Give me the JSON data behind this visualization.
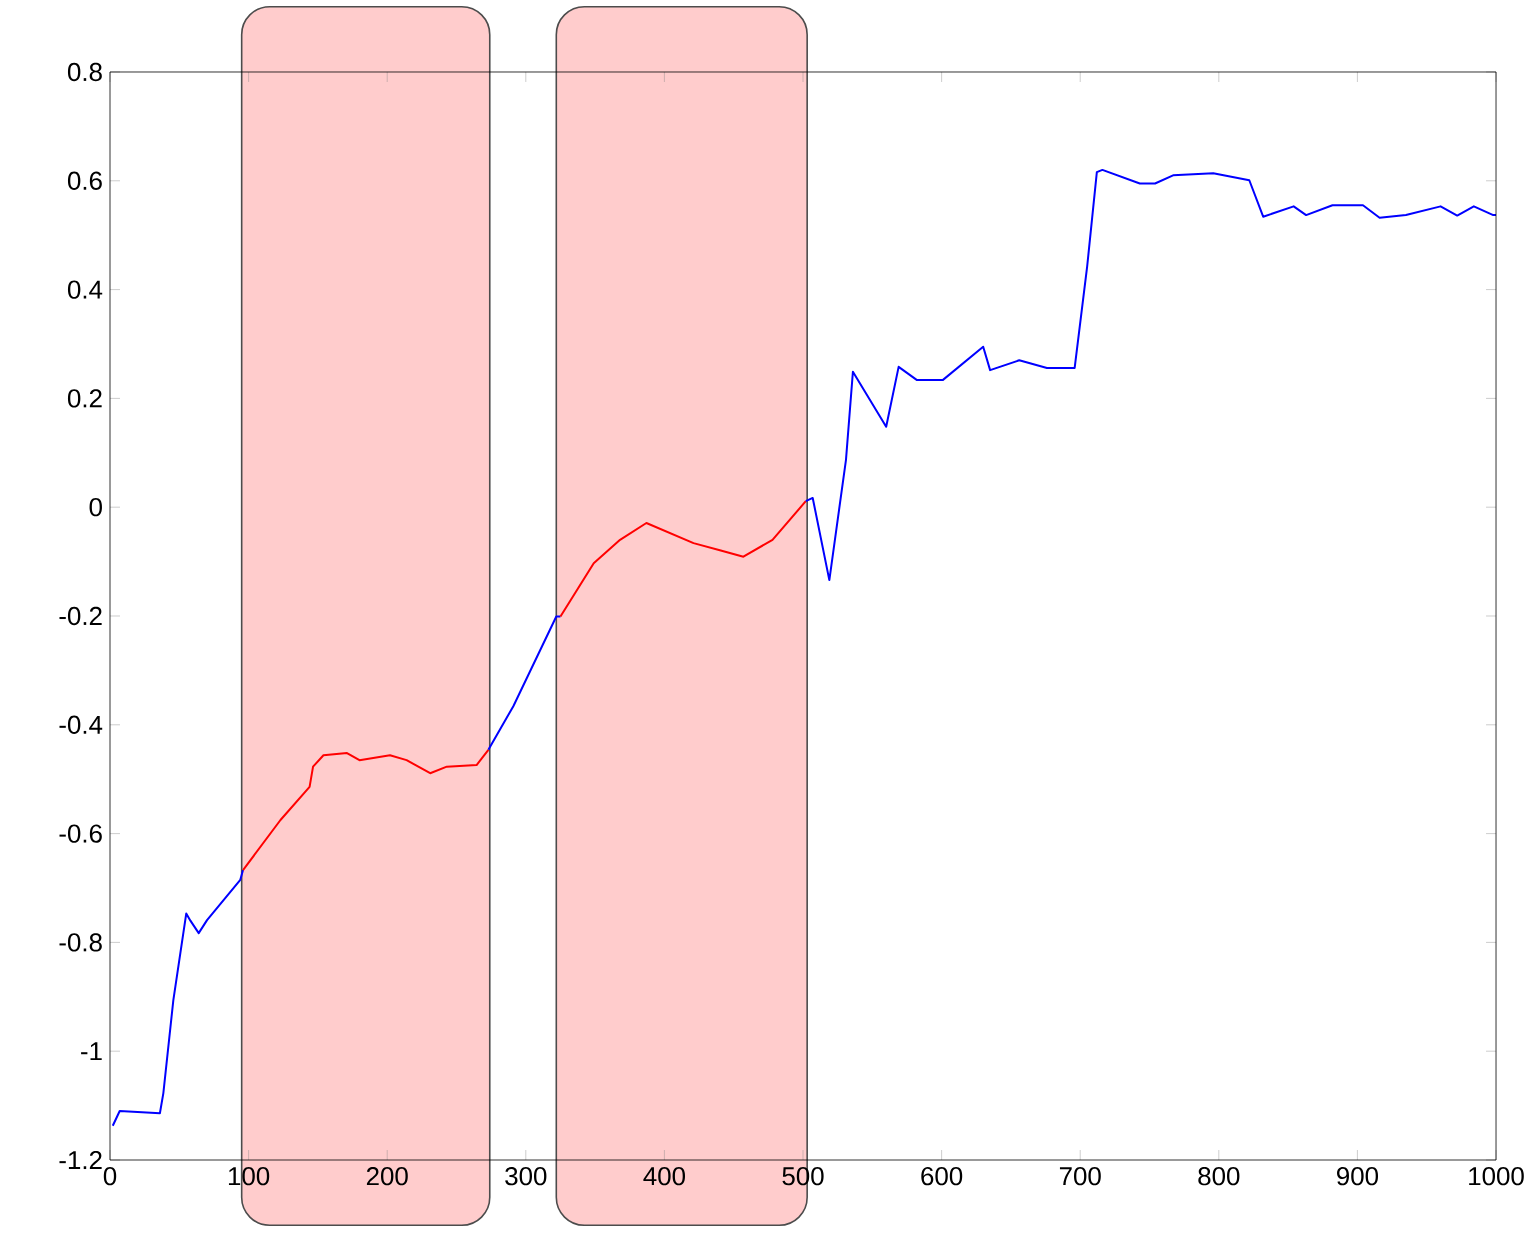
{
  "chart_data": {
    "type": "line",
    "xlim": [
      0,
      1000
    ],
    "ylim": [
      -1.2,
      0.8
    ],
    "xticks": [
      0,
      100,
      200,
      300,
      400,
      500,
      600,
      700,
      800,
      900,
      1000
    ],
    "yticks": [
      -1.2,
      -1,
      -0.8,
      -0.6,
      -0.4,
      -0.2,
      0,
      0.2,
      0.4,
      0.6,
      0.8
    ],
    "bands": [
      {
        "axis": "x",
        "from": 95,
        "to": 274,
        "color": "#ffcccc"
      },
      {
        "axis": "x",
        "from": 322,
        "to": 503,
        "color": "#ffcccc"
      }
    ],
    "series": [
      {
        "color": "#0000ff",
        "x": [
          2,
          7,
          36,
          38.5,
          45.7,
          55,
          58,
          64,
          70,
          94,
          96
        ],
        "values": [
          -1.137,
          -1.11,
          -1.114,
          -1.077,
          -0.906,
          -0.747,
          -0.76,
          -0.783,
          -0.759,
          -0.685,
          -0.667
        ]
      },
      {
        "color": "#ff0000",
        "x": [
          96,
          123,
          144,
          146.5,
          154,
          171,
          180,
          202,
          214,
          231,
          243,
          264.5,
          273
        ],
        "values": [
          -0.667,
          -0.575,
          -0.514,
          -0.477,
          -0.456,
          -0.452,
          -0.465,
          -0.456,
          -0.465,
          -0.489,
          -0.477,
          -0.474,
          -0.446
        ]
      },
      {
        "color": "#0000ff",
        "x": [
          273,
          291,
          322,
          325
        ],
        "values": [
          -0.446,
          -0.366,
          -0.201,
          -0.201
        ]
      },
      {
        "color": "#ff0000",
        "x": [
          325,
          349,
          368,
          387,
          421,
          440,
          457,
          478,
          502
        ],
        "values": [
          -0.201,
          -0.103,
          -0.06,
          -0.029,
          -0.066,
          -0.079,
          -0.091,
          -0.06,
          0.011
        ]
      },
      {
        "color": "#0000ff",
        "x": [
          502,
          507,
          519,
          531,
          536,
          560,
          569,
          582,
          601,
          630,
          635,
          656,
          676,
          696,
          705,
          712,
          716,
          743,
          754,
          767,
          796,
          822,
          832,
          854,
          863,
          882,
          904,
          916,
          935,
          960,
          972,
          984,
          998,
          1000
        ],
        "values": [
          0.011,
          0.017,
          -0.134,
          0.087,
          0.249,
          0.148,
          0.258,
          0.234,
          0.234,
          0.295,
          0.252,
          0.27,
          0.256,
          0.256,
          0.442,
          0.616,
          0.62,
          0.595,
          0.595,
          0.61,
          0.614,
          0.601,
          0.534,
          0.553,
          0.537,
          0.555,
          0.555,
          0.532,
          0.537,
          0.553,
          0.536,
          0.553,
          0.537,
          0.537
        ]
      }
    ]
  }
}
